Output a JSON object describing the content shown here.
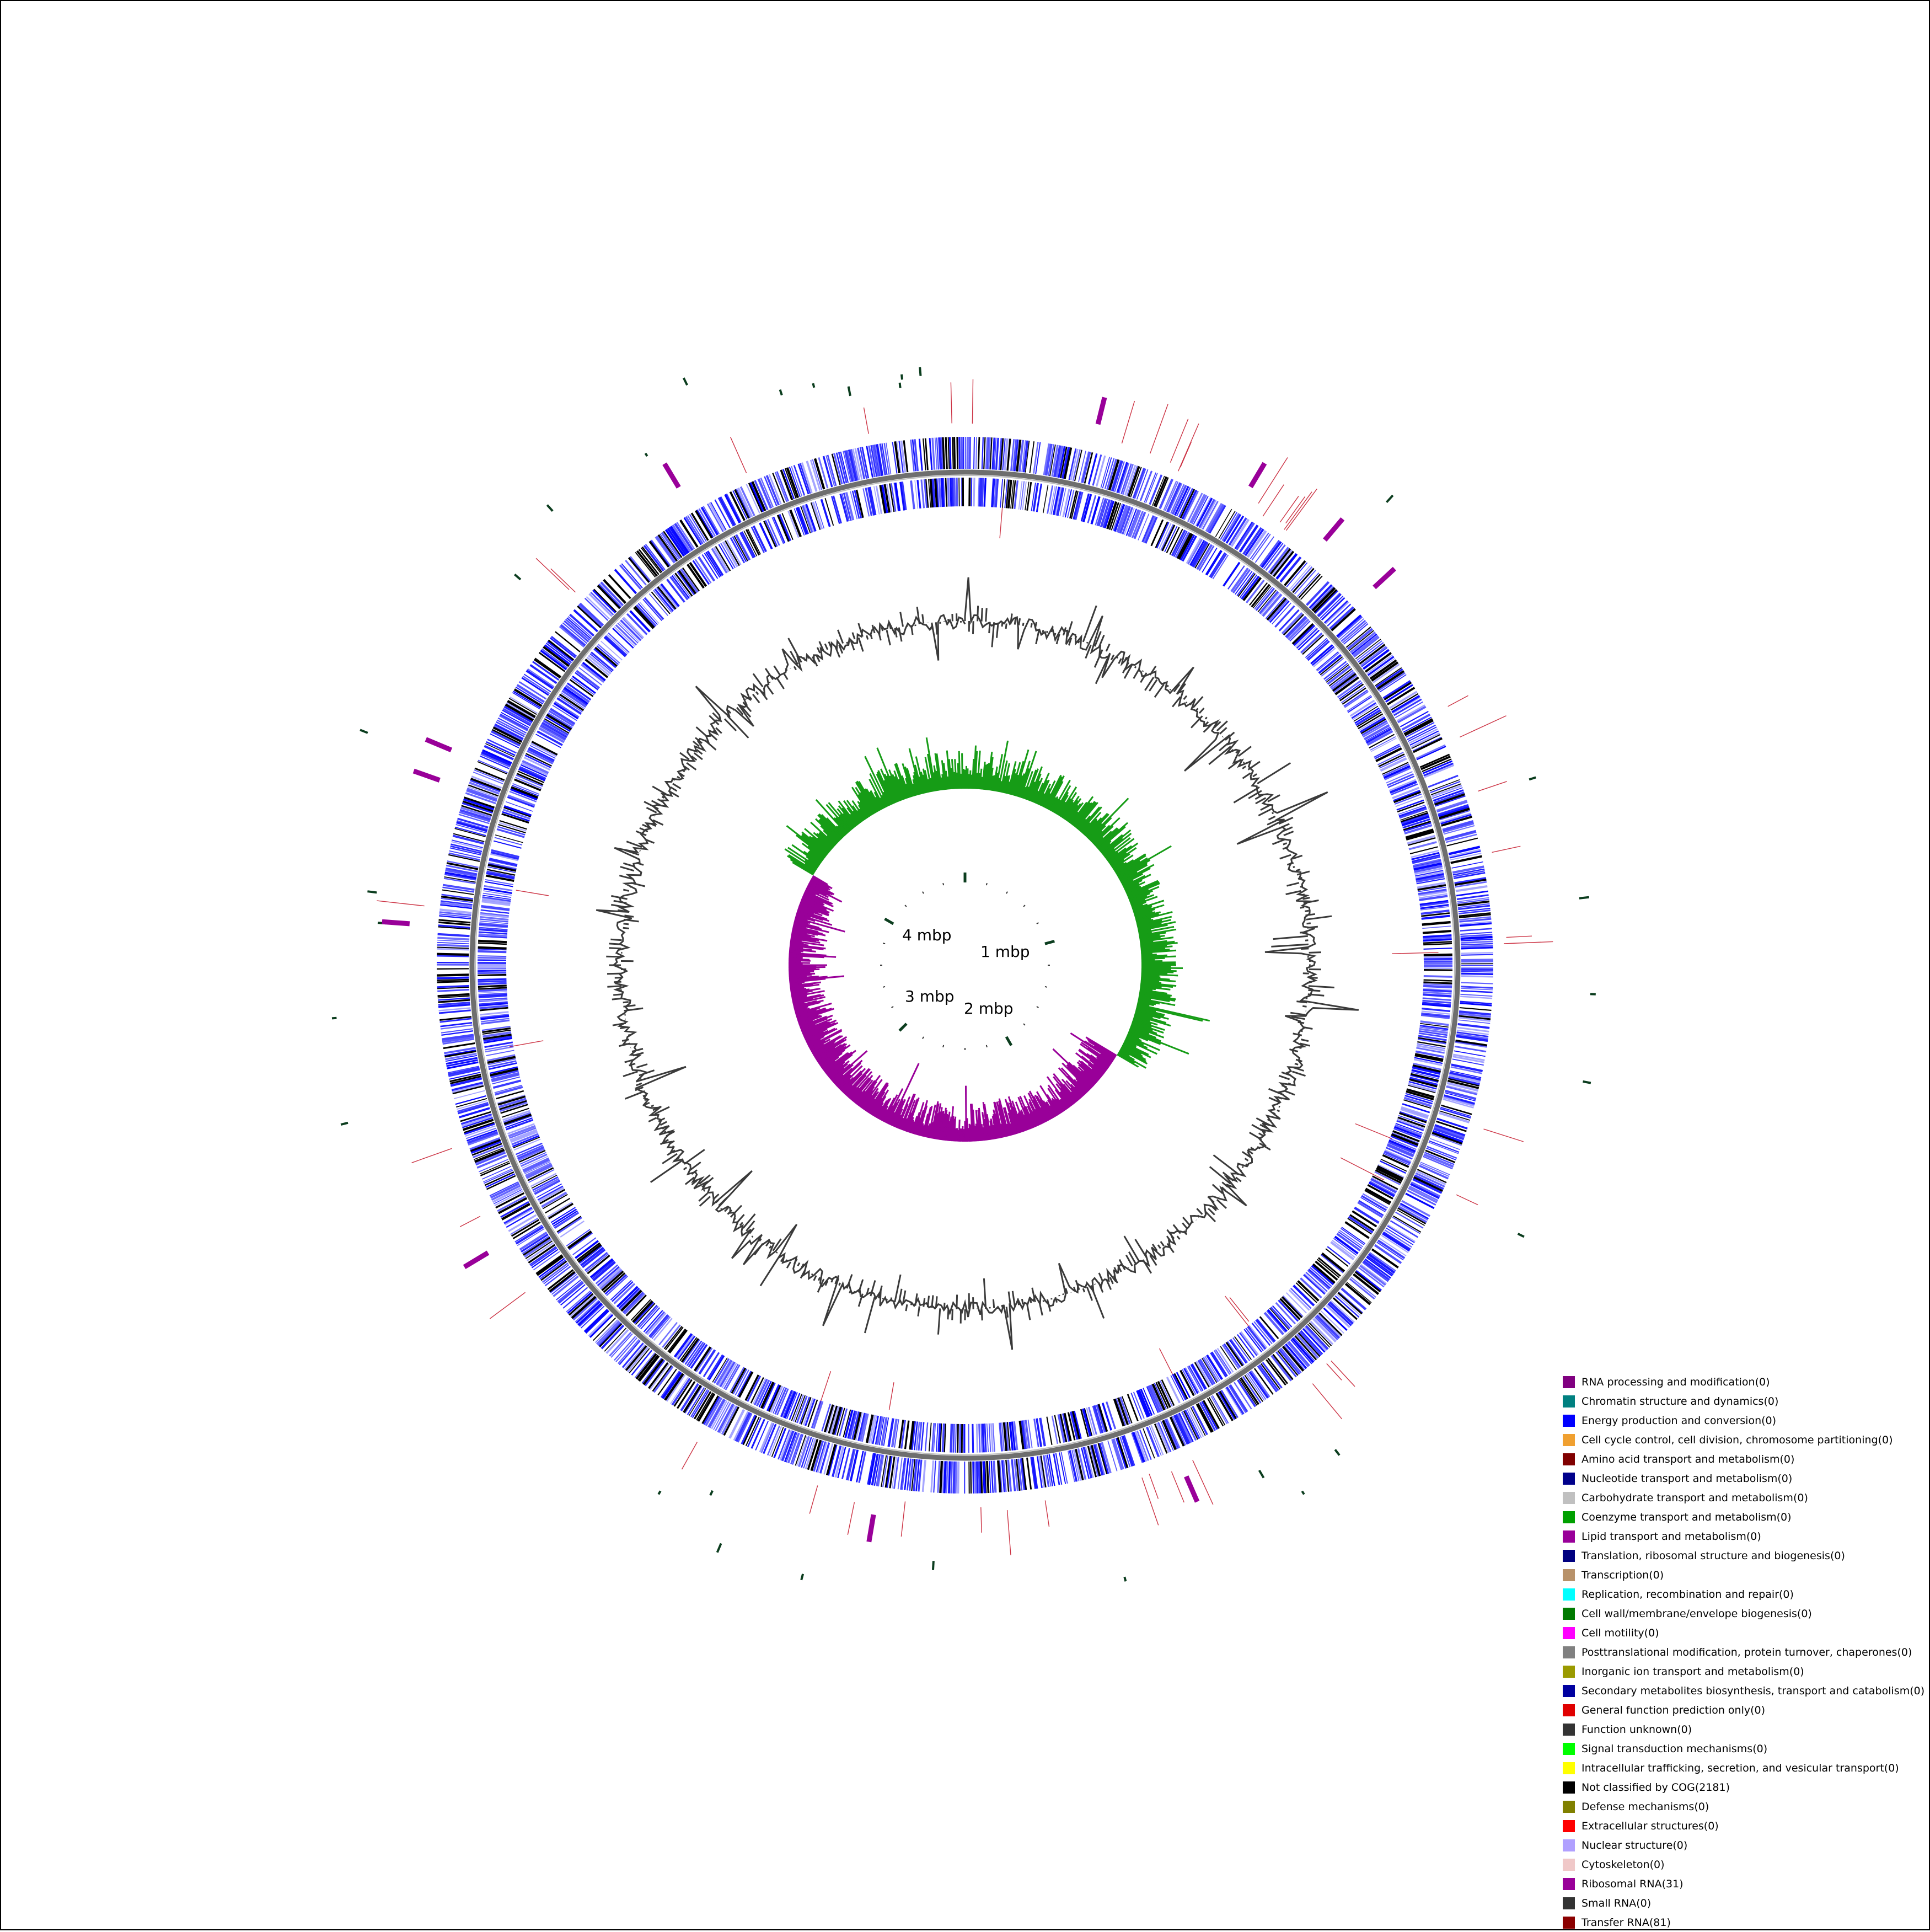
{
  "diagram": {
    "scale_labels": [
      "1 mbp",
      "2 mbp",
      "3 mbp",
      "4 mbp"
    ],
    "colors": {
      "cds_blue": "#0000ff",
      "cds_black": "#000000",
      "backbone": "#6e6e6e",
      "gc_content": "#3a3a3a",
      "gc_skew_positive": "#169c16",
      "gc_skew_negative": "#990099",
      "rrna": "#990099",
      "trna": "#8b0000",
      "small_rna": "#333333"
    }
  },
  "legend": {
    "items": [
      {
        "label": "RNA processing and modification(0)",
        "color": "#800080"
      },
      {
        "label": "Chromatin structure and dynamics(0)",
        "color": "#008080"
      },
      {
        "label": "Energy production and conversion(0)",
        "color": "#0000ff"
      },
      {
        "label": "Cell cycle control, cell division, chromosome partitioning(0)",
        "color": "#f0a030"
      },
      {
        "label": "Amino acid transport and metabolism(0)",
        "color": "#800000"
      },
      {
        "label": "Nucleotide transport and metabolism(0)",
        "color": "#00008b"
      },
      {
        "label": "Carbohydrate transport and metabolism(0)",
        "color": "#c0c0c0"
      },
      {
        "label": "Coenzyme transport and metabolism(0)",
        "color": "#00a000"
      },
      {
        "label": "Lipid transport and metabolism(0)",
        "color": "#990099"
      },
      {
        "label": "Translation, ribosomal structure and biogenesis(0)",
        "color": "#000080"
      },
      {
        "label": "Transcription(0)",
        "color": "#b8926a"
      },
      {
        "label": "Replication, recombination and repair(0)",
        "color": "#00ffff"
      },
      {
        "label": "Cell wall/membrane/envelope biogenesis(0)",
        "color": "#007a00"
      },
      {
        "label": "Cell motility(0)",
        "color": "#ff00ff"
      },
      {
        "label": "Posttranslational modification, protein turnover, chaperones(0)",
        "color": "#808080"
      },
      {
        "label": "Inorganic ion transport and metabolism(0)",
        "color": "#9a9a00"
      },
      {
        "label": "Secondary metabolites biosynthesis, transport and catabolism(0)",
        "color": "#0000a0"
      },
      {
        "label": "General function prediction only(0)",
        "color": "#e00000"
      },
      {
        "label": "Function unknown(0)",
        "color": "#333333"
      },
      {
        "label": "Signal transduction mechanisms(0)",
        "color": "#00ff00"
      },
      {
        "label": "Intracellular trafficking, secretion, and vesicular transport(0)",
        "color": "#ffff00"
      },
      {
        "label": "Not classified by COG(2181)",
        "color": "#000000"
      },
      {
        "label": "Defense mechanisms(0)",
        "color": "#808000"
      },
      {
        "label": "Extracellular structures(0)",
        "color": "#ff0000"
      },
      {
        "label": "Nuclear structure(0)",
        "color": "#b0a0ff"
      },
      {
        "label": "Cytoskeleton(0)",
        "color": "#f0c8c8"
      },
      {
        "label": "Ribosomal RNA(31)",
        "color": "#990099"
      },
      {
        "label": "Small RNA(0)",
        "color": "#333333"
      },
      {
        "label": "Transfer RNA(81)",
        "color": "#8b0000"
      }
    ]
  }
}
